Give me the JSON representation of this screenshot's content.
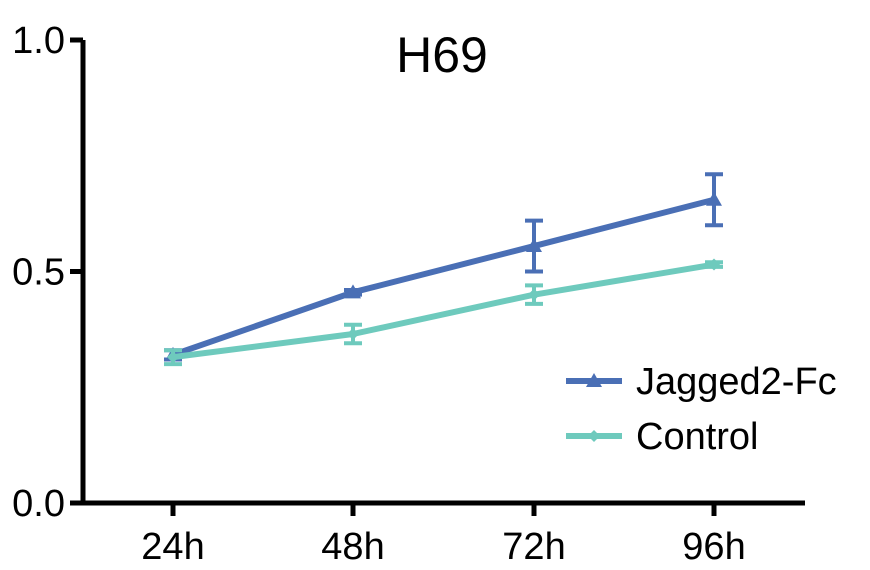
{
  "chart_data": {
    "type": "line",
    "title": "H69",
    "xlabel": "",
    "ylabel": "",
    "categories": [
      "24h",
      "48h",
      "72h",
      "96h"
    ],
    "ylim": [
      0,
      1.0
    ],
    "yticks": [
      0.0,
      0.5,
      1.0
    ],
    "ytick_labels": [
      "0.0",
      "0.5",
      "1.0"
    ],
    "grid": false,
    "legend_position": "bottom-right",
    "series": [
      {
        "name": "Jagged2-Fc",
        "values": [
          0.32,
          0.455,
          0.555,
          0.655
        ],
        "errors": [
          0.01,
          0.005,
          0.055,
          0.055
        ],
        "color": "#4a6fb5",
        "marker": "triangle"
      },
      {
        "name": "Control",
        "values": [
          0.315,
          0.365,
          0.45,
          0.515
        ],
        "errors": [
          0.015,
          0.02,
          0.02,
          0.005
        ],
        "color": "#6ecabd",
        "marker": "diamond"
      }
    ]
  }
}
